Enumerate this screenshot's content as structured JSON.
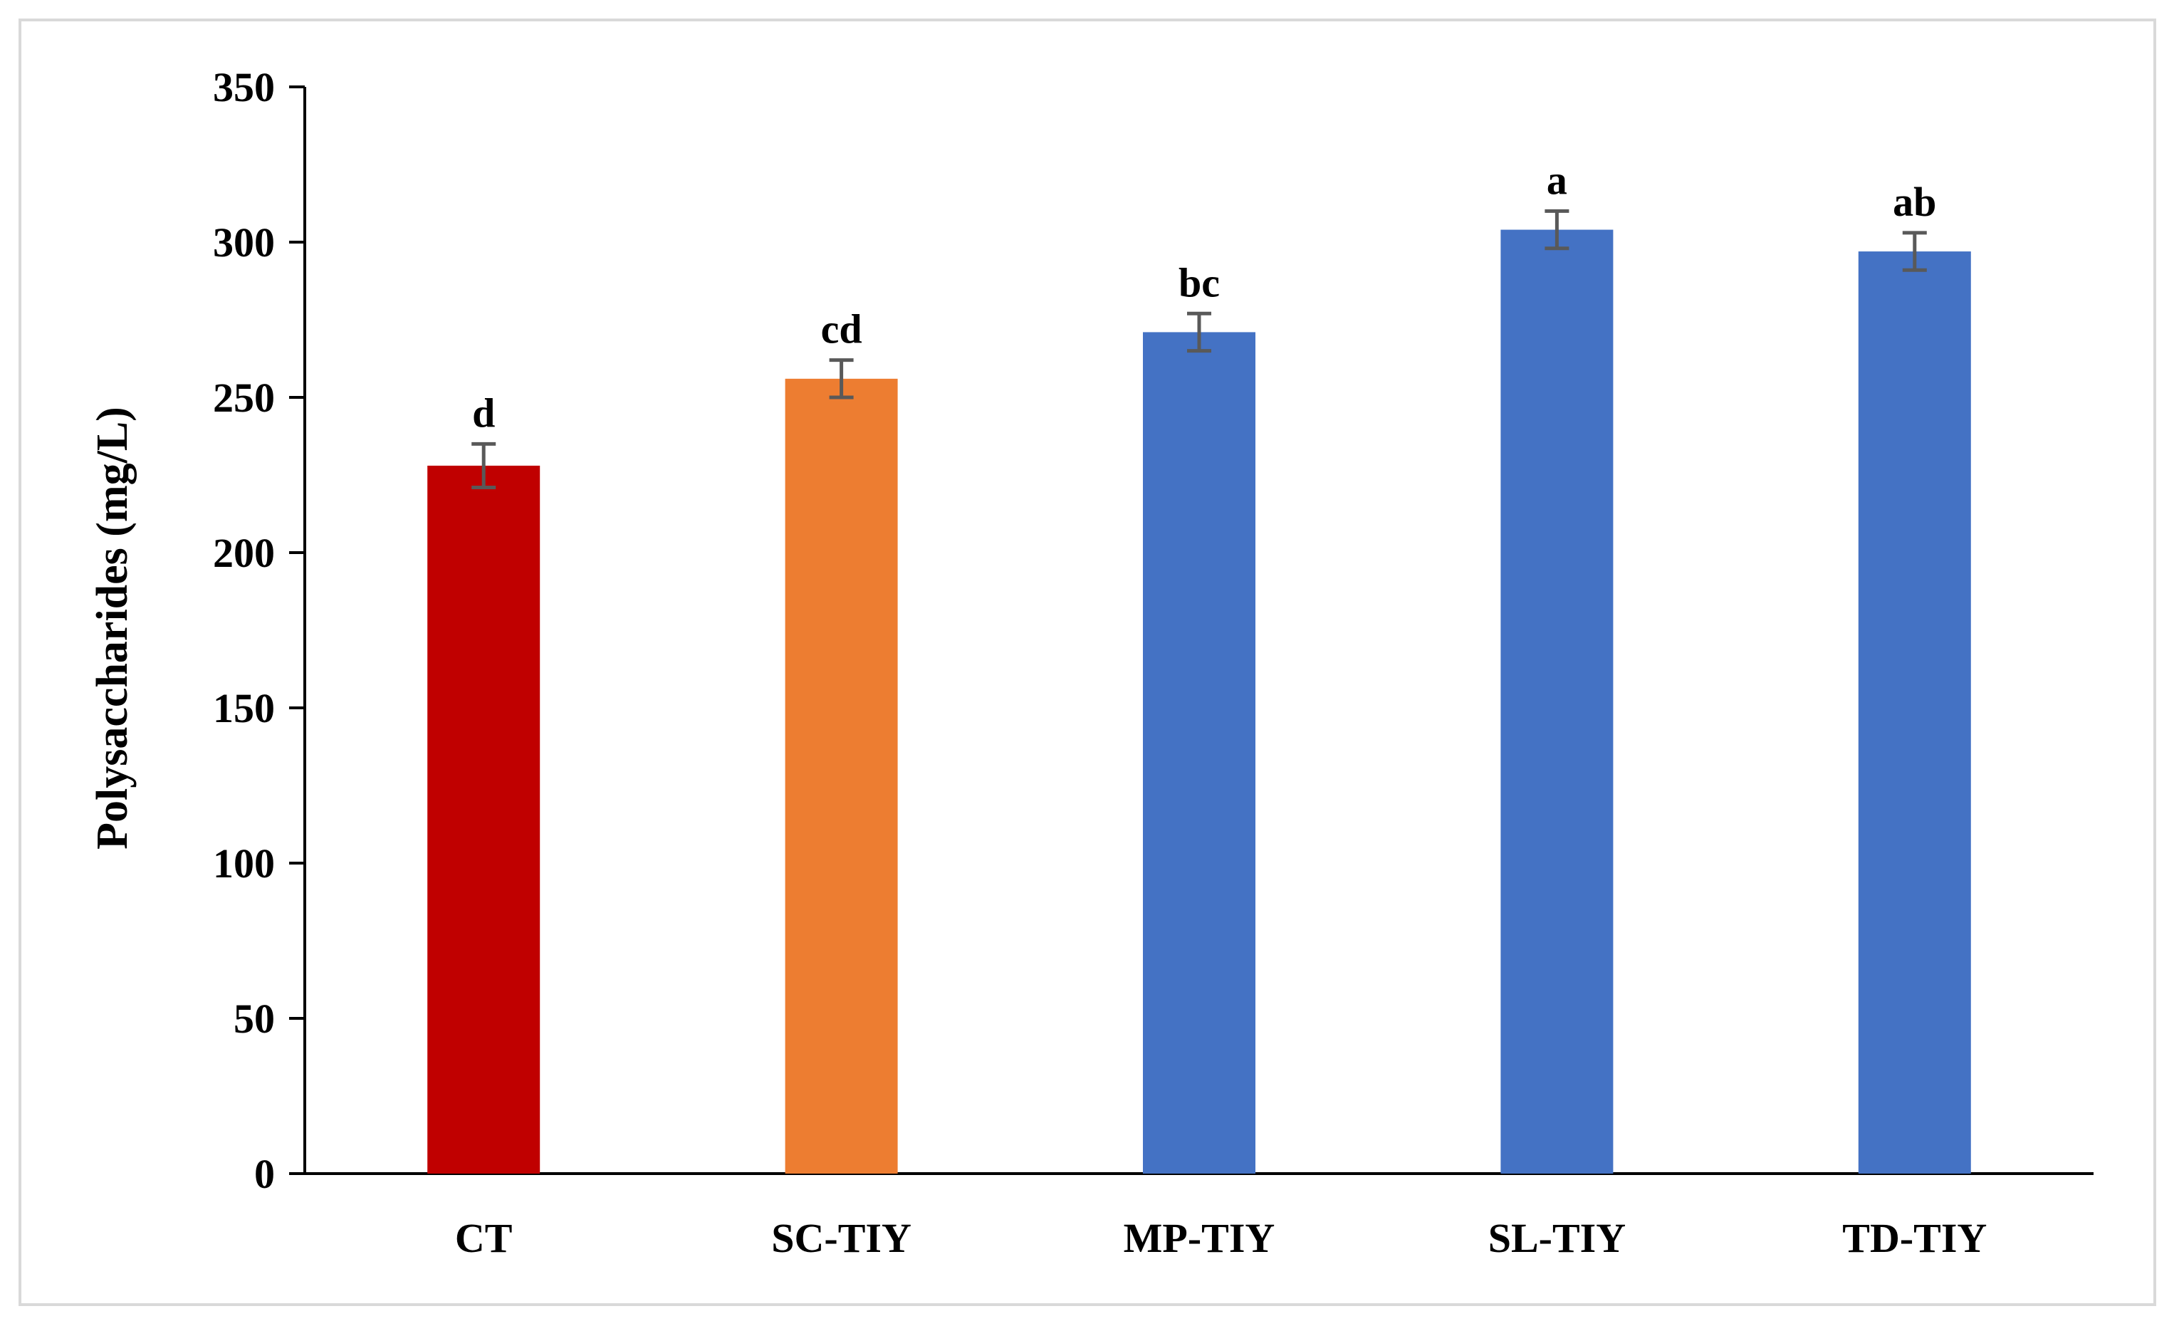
{
  "chart_data": {
    "type": "bar",
    "ylabel": "Polysaccharides (mg/L)",
    "xlabel": "",
    "ylim": [
      0,
      350
    ],
    "yticks": [
      0,
      50,
      100,
      150,
      200,
      250,
      300,
      350
    ],
    "grid": false,
    "categories": [
      "CT",
      "SC-TIY",
      "MP-TIY",
      "SL-TIY",
      "TD-TIY"
    ],
    "values": [
      228,
      256,
      271,
      304,
      297
    ],
    "errors": [
      7,
      6,
      6,
      6,
      6
    ],
    "significance": [
      "d",
      "cd",
      "bc",
      "a",
      "ab"
    ],
    "colors": [
      "#C00000",
      "#ED7D31",
      "#4472C4",
      "#4472C4",
      "#4472C4"
    ],
    "error_bar_color": "#595959"
  }
}
